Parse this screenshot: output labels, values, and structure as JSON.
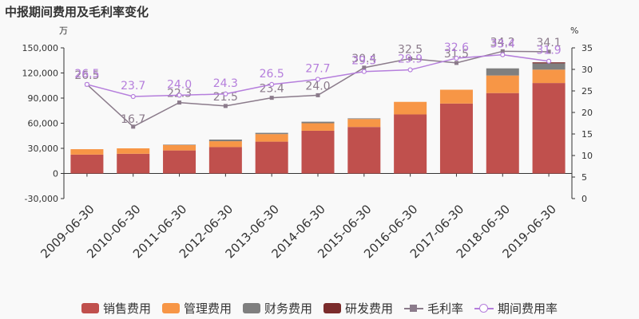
{
  "title": "中报期间费用及毛利率变化",
  "chart_data": {
    "type": "bar",
    "title": "中报期间费用及毛利率变化",
    "categories": [
      "2009-06-30",
      "2010-06-30",
      "2011-06-30",
      "2012-06-30",
      "2013-06-30",
      "2014-06-30",
      "2015-06-30",
      "2016-06-30",
      "2017-06-30",
      "2018-06-30",
      "2019-06-30"
    ],
    "left_axis": {
      "unit": "万",
      "min": -30000,
      "max": 150000,
      "ticks": [
        "150,000",
        "120,000",
        "90,000",
        "60,000",
        "30,000",
        "0",
        "-30,000"
      ]
    },
    "right_axis": {
      "unit": "%",
      "min": 0,
      "max": 35,
      "ticks": [
        "35",
        "30",
        "25",
        "20",
        "15",
        "10",
        "5",
        "0"
      ]
    },
    "stacked": true,
    "series": [
      {
        "name": "销售费用",
        "type": "bar",
        "color": "#c0504d",
        "values": [
          22500,
          23500,
          27500,
          31500,
          38000,
          51000,
          55500,
          70500,
          83500,
          96000,
          108000
        ]
      },
      {
        "name": "管理费用",
        "type": "bar",
        "color": "#f79646",
        "values": [
          6500,
          6500,
          6500,
          7000,
          9000,
          9000,
          9500,
          15000,
          16500,
          21000,
          16000
        ]
      },
      {
        "name": "财务费用",
        "type": "bar",
        "color": "#7f7f7f",
        "values": [
          0,
          0,
          500,
          2000,
          1500,
          1800,
          800,
          0,
          0,
          8500,
          7500
        ]
      },
      {
        "name": "研发费用",
        "type": "bar",
        "color": "#7b2c2c",
        "values": [
          0,
          0,
          0,
          0,
          0,
          0,
          0,
          0,
          0,
          0,
          1200
        ]
      },
      {
        "name": "毛利率",
        "type": "line",
        "axis": "right",
        "color": "#8b7b8b",
        "marker": "square",
        "values": [
          26.5,
          16.7,
          22.3,
          21.5,
          23.4,
          24.0,
          30.4,
          32.5,
          31.5,
          34.2,
          34.1
        ],
        "labels": [
          "26.5",
          "16.7",
          "22.3",
          "21.5",
          "23.4",
          "24.0",
          "30.4",
          "32.5",
          "31.5",
          "34.2",
          "34.1"
        ]
      },
      {
        "name": "期间费用率",
        "type": "line",
        "axis": "right",
        "color": "#b57edc",
        "marker": "circle",
        "values": [
          26.5,
          23.7,
          24.0,
          24.3,
          26.5,
          27.7,
          29.5,
          29.9,
          32.6,
          33.4,
          31.9
        ],
        "labels": [
          "26.5",
          "23.7",
          "24.0",
          "24.3",
          "26.5",
          "27.7",
          "29.5",
          "29.9",
          "32.6",
          "33.4",
          "31.9"
        ]
      }
    ]
  }
}
